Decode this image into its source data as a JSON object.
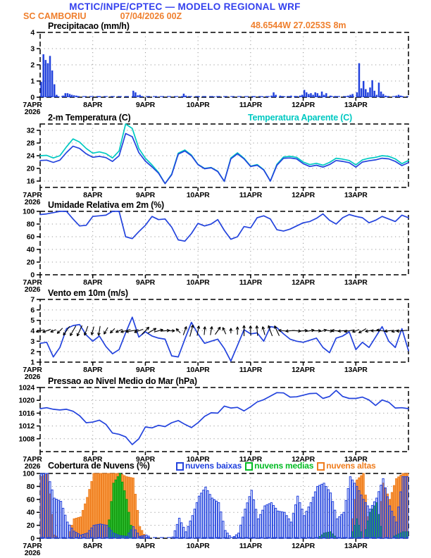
{
  "header": {
    "title": "MCTIC/INPE/CPTEC — MODELO REGIONAL WRF",
    "station": "SC CAMBORIU",
    "run_datetime": "07/04/2026 00Z",
    "location": "48.6544W 27.0253S 8m"
  },
  "colors": {
    "header_blue": "#3340ee",
    "header_orange": "#ef7f2d",
    "line_blue": "#2343dd",
    "cyan": "#00c9c2",
    "cloud_low_stroke": "#2343dd",
    "cloud_mid_fill": "#33c133",
    "cloud_high_fill": "#faa14e"
  },
  "x_axis": {
    "day_labels": [
      "7APR",
      "8APR",
      "9APR",
      "10APR",
      "11APR",
      "12APR",
      "13APR"
    ],
    "year": "2026",
    "total_hours": 168
  },
  "chart_data": [
    {
      "id": "precipitation",
      "type": "bar",
      "title": "Precipitacao (mm/h)",
      "ylim": [
        0,
        4
      ],
      "yticks": [
        0,
        1,
        2,
        3,
        4
      ],
      "bars": [
        [
          0,
          0.95
        ],
        [
          1,
          2.65
        ],
        [
          2,
          2.3
        ],
        [
          3,
          2.1
        ],
        [
          4,
          2.55
        ],
        [
          5,
          1.65
        ],
        [
          6,
          0.8
        ],
        [
          7,
          0.15
        ],
        [
          8,
          0.05
        ],
        [
          10,
          0.1
        ],
        [
          11,
          0.25
        ],
        [
          12,
          0.25
        ],
        [
          13,
          0.2
        ],
        [
          14,
          0.15
        ],
        [
          15,
          0.12
        ],
        [
          16,
          0.1
        ],
        [
          17,
          0.05
        ],
        [
          26,
          0.05
        ],
        [
          27,
          0.04
        ],
        [
          42,
          0.4
        ],
        [
          43,
          0.3
        ],
        [
          44,
          0.12
        ],
        [
          45,
          0.15
        ],
        [
          46,
          0.05
        ],
        [
          53,
          0.04
        ],
        [
          64,
          0.05
        ],
        [
          65,
          0.22
        ],
        [
          66,
          0.1
        ],
        [
          72,
          0.05
        ],
        [
          79,
          0.05
        ],
        [
          97,
          0.05
        ],
        [
          101,
          0.05
        ],
        [
          103,
          0.06
        ],
        [
          105,
          0.1
        ],
        [
          106,
          0.3
        ],
        [
          107,
          0.15
        ],
        [
          109,
          0.1
        ],
        [
          111,
          0.06
        ],
        [
          114,
          0.1
        ],
        [
          116,
          0.08
        ],
        [
          118,
          0.1
        ],
        [
          119,
          0.15
        ],
        [
          120,
          0.45
        ],
        [
          121,
          0.3
        ],
        [
          122,
          0.2
        ],
        [
          123,
          0.25
        ],
        [
          124,
          0.15
        ],
        [
          125,
          0.3
        ],
        [
          126,
          0.25
        ],
        [
          127,
          0.1
        ],
        [
          128,
          0.35
        ],
        [
          129,
          0.15
        ],
        [
          130,
          0.25
        ],
        [
          132,
          0.1
        ],
        [
          134,
          0.08
        ],
        [
          140,
          0.1
        ],
        [
          141,
          0.15
        ],
        [
          142,
          0.2
        ],
        [
          144,
          0.3
        ],
        [
          145,
          2.1
        ],
        [
          146,
          0.55
        ],
        [
          147,
          1.0
        ],
        [
          148,
          0.5
        ],
        [
          149,
          0.3
        ],
        [
          150,
          0.6
        ],
        [
          151,
          1.05
        ],
        [
          152,
          0.4
        ],
        [
          153,
          0.15
        ],
        [
          154,
          0.9
        ],
        [
          155,
          0.35
        ],
        [
          156,
          0.2
        ],
        [
          157,
          0.1
        ],
        [
          158,
          0.05
        ],
        [
          162,
          0.1
        ],
        [
          163,
          0.15
        ],
        [
          164,
          0.1
        ],
        [
          165,
          0.05
        ]
      ]
    },
    {
      "id": "temperature",
      "type": "line",
      "title": "2-m Temperatura (C)",
      "title2": "Temperatura Aparente (C)",
      "ylim": [
        14,
        34
      ],
      "yticks": [
        16,
        20,
        24,
        28,
        32
      ],
      "x_step_hours": 3,
      "series": [
        {
          "name": "Temperatura Aparente (C)",
          "color_key": "cyan",
          "values": [
            24.0,
            24.1,
            23.3,
            24.0,
            26.8,
            29.3,
            28.3,
            26.3,
            24.8,
            25.2,
            24.7,
            23.3,
            25.5,
            34.0,
            32.6,
            26.3,
            23.2,
            21.1,
            18.7,
            15.2,
            18.2,
            24.8,
            25.8,
            24.2,
            21.3,
            20.0,
            20.3,
            19.1,
            15.9,
            23.3,
            24.9,
            23.2,
            20.7,
            21.2,
            19.6,
            16.0,
            21.3,
            23.6,
            23.8,
            23.5,
            22.0,
            21.2,
            21.6,
            21.0,
            21.9,
            23.2,
            22.9,
            22.5,
            21.1,
            22.7,
            23.2,
            23.5,
            24.0,
            23.8,
            23.0,
            21.5,
            22.5
          ]
        },
        {
          "name": "2-m Temperatura (C)",
          "color_key": "line_blue",
          "values": [
            22.5,
            22.6,
            21.9,
            22.6,
            25.0,
            27.0,
            26.3,
            24.6,
            23.5,
            23.8,
            23.4,
            22.2,
            24.0,
            31.0,
            30.0,
            25.0,
            22.3,
            20.5,
            18.5,
            15.2,
            18.0,
            24.5,
            25.5,
            24.0,
            21.2,
            19.9,
            20.2,
            19.0,
            15.9,
            23.0,
            24.6,
            23.0,
            20.6,
            21.0,
            19.5,
            16.0,
            21.0,
            23.2,
            23.3,
            23.0,
            21.5,
            20.6,
            21.0,
            20.4,
            21.2,
            22.5,
            22.2,
            21.8,
            20.4,
            22.0,
            22.4,
            22.7,
            23.2,
            23.0,
            22.2,
            20.9,
            21.8
          ]
        }
      ]
    },
    {
      "id": "humidity",
      "type": "line",
      "title": "Umidade Relativa em 2m (%)",
      "ylim": [
        0,
        100
      ],
      "yticks": [
        0,
        20,
        40,
        60,
        80,
        100
      ],
      "x_step_hours": 3,
      "series": [
        {
          "name": "Umidade Relativa em 2m (%)",
          "color_key": "line_blue",
          "values": [
            95,
            96,
            98,
            100,
            100,
            88,
            77,
            78,
            92,
            93,
            94,
            100,
            100,
            60,
            57,
            68,
            78,
            92,
            87,
            88,
            75,
            55,
            53,
            65,
            81,
            77,
            80,
            87,
            70,
            56,
            60,
            76,
            74,
            90,
            93,
            88,
            71,
            69,
            72,
            77,
            82,
            84,
            89,
            96,
            86,
            80,
            90,
            95,
            92,
            90,
            82,
            86,
            92,
            88,
            84,
            94,
            90
          ]
        }
      ]
    },
    {
      "id": "wind",
      "type": "line",
      "title": "Vento em 10m (m/s)",
      "ylim": [
        1,
        7
      ],
      "yticks": [
        1,
        2,
        3,
        4,
        5,
        6,
        7
      ],
      "x_step_hours": 3,
      "series": [
        {
          "name": "Vento em 10m (m/s)",
          "color_key": "line_blue",
          "values": [
            2.8,
            2.9,
            1.5,
            2.4,
            4.2,
            4.5,
            4.6,
            3.6,
            3.0,
            3.5,
            2.5,
            1.8,
            2.2,
            3.8,
            5.3,
            3.4,
            3.9,
            3.5,
            3.3,
            3.2,
            1.6,
            1.5,
            3.2,
            4.8,
            3.7,
            2.8,
            3.0,
            3.2,
            2.3,
            1.1,
            2.6,
            4.1,
            3.7,
            3.8,
            3.0,
            4.4,
            4.3,
            3.7,
            3.2,
            3.0,
            2.9,
            3.1,
            3.3,
            2.4,
            1.9,
            3.3,
            3.5,
            3.9,
            2.2,
            2.9,
            2.4,
            3.4,
            4.4,
            3.0,
            2.4,
            4.2,
            2.1
          ]
        }
      ],
      "arrows": {
        "row": 4,
        "step_hours": 3,
        "dirs_deg": [
          195,
          200,
          205,
          225,
          235,
          240,
          245,
          250,
          255,
          260,
          240,
          225,
          205,
          195,
          190,
          200,
          45,
          30,
          15,
          5,
          0,
          135,
          70,
          75,
          80,
          85,
          80,
          55,
          115,
          90,
          90,
          90,
          92,
          95,
          105,
          110,
          115,
          175,
          185,
          355,
          5,
          10,
          0,
          15,
          350,
          175,
          185,
          190,
          200,
          210,
          190,
          180,
          170,
          185,
          195,
          185
        ]
      }
    },
    {
      "id": "pressure",
      "type": "line",
      "title": "Pressao ao Nivel Medio do Mar (hPa)",
      "ylim": [
        1004,
        1024
      ],
      "yticks": [
        1008,
        1012,
        1016,
        1020,
        1024
      ],
      "x_step_hours": 3,
      "series": [
        {
          "name": "Pressao ao Nivel Medio do Mar (hPa)",
          "color_key": "line_blue",
          "values": [
            1017.4,
            1017.7,
            1017.2,
            1017.0,
            1017.2,
            1016.6,
            1015.2,
            1013.0,
            1013.2,
            1013.8,
            1012.5,
            1009.8,
            1009.4,
            1008.6,
            1006.2,
            1008.0,
            1011.7,
            1011.4,
            1012.2,
            1011.8,
            1013.0,
            1013.7,
            1012.5,
            1011.5,
            1013.0,
            1015.0,
            1016.1,
            1016.0,
            1018.2,
            1017.6,
            1017.8,
            1016.7,
            1018.0,
            1019.5,
            1020.2,
            1021.3,
            1022.4,
            1022.3,
            1021.0,
            1021.1,
            1021.6,
            1022.1,
            1022.2,
            1020.6,
            1021.2,
            1023.1,
            1021.2,
            1020.6,
            1020.6,
            1021.0,
            1020.1,
            1018.4,
            1020.1,
            1019.4,
            1017.6,
            1017.7,
            1017.4
          ]
        }
      ]
    },
    {
      "id": "clouds",
      "type": "bar",
      "title": "Cobertura de Nuvens (%)",
      "ylim": [
        0,
        100
      ],
      "yticks": [
        0,
        20,
        40,
        60,
        80,
        100
      ],
      "x_step_hours": 3,
      "legend": [
        {
          "label": "nuvens baixas",
          "color": "#2343dd"
        },
        {
          "label": "nuvens medias",
          "color": "#00bb22"
        },
        {
          "label": "nuvens altas",
          "color": "#ef7d1e"
        }
      ],
      "series": [
        {
          "name": "nuvens altas",
          "fill": "#faa14e",
          "stroke": "#ee7c1c",
          "values": [
            95,
            100,
            5,
            0,
            0,
            30,
            33,
            63,
            100,
            100,
            100,
            100,
            100,
            95,
            93,
            18,
            0,
            0,
            0,
            0,
            0,
            0,
            0,
            0,
            0,
            0,
            0,
            0,
            0,
            0,
            0,
            0,
            0,
            0,
            0,
            0,
            0,
            0,
            0,
            0,
            0,
            0,
            0,
            0,
            0,
            0,
            0,
            0,
            90,
            100,
            0,
            0,
            85,
            60,
            92,
            100
          ]
        },
        {
          "name": "nuvens medias",
          "fill": "#33c133",
          "stroke": "#0f9b0f",
          "values": [
            0,
            0,
            0,
            0,
            0,
            0,
            0,
            0,
            0,
            0,
            0,
            85,
            100,
            60,
            0,
            0,
            0,
            0,
            0,
            0,
            0,
            0,
            0,
            0,
            0,
            0,
            0,
            0,
            0,
            0,
            0,
            0,
            0,
            0,
            0,
            0,
            0,
            0,
            0,
            0,
            0,
            0,
            0,
            8,
            10,
            0,
            0,
            0,
            30,
            0,
            40,
            55,
            0,
            0,
            5,
            10
          ]
        },
        {
          "name": "nuvens baixas",
          "fill": "rgba(35,67,221,0.07)",
          "stroke": "#2343dd",
          "values": [
            100,
            100,
            62,
            57,
            25,
            11,
            5,
            8,
            20,
            22,
            20,
            8,
            4,
            3,
            18,
            3,
            5,
            0,
            0,
            0,
            2,
            31,
            10,
            35,
            65,
            79,
            62,
            55,
            12,
            0,
            8,
            45,
            74,
            30,
            50,
            55,
            42,
            40,
            25,
            65,
            35,
            55,
            80,
            85,
            70,
            30,
            40,
            95,
            80,
            60,
            45,
            62,
            92,
            50,
            25,
            95
          ]
        }
      ]
    }
  ]
}
